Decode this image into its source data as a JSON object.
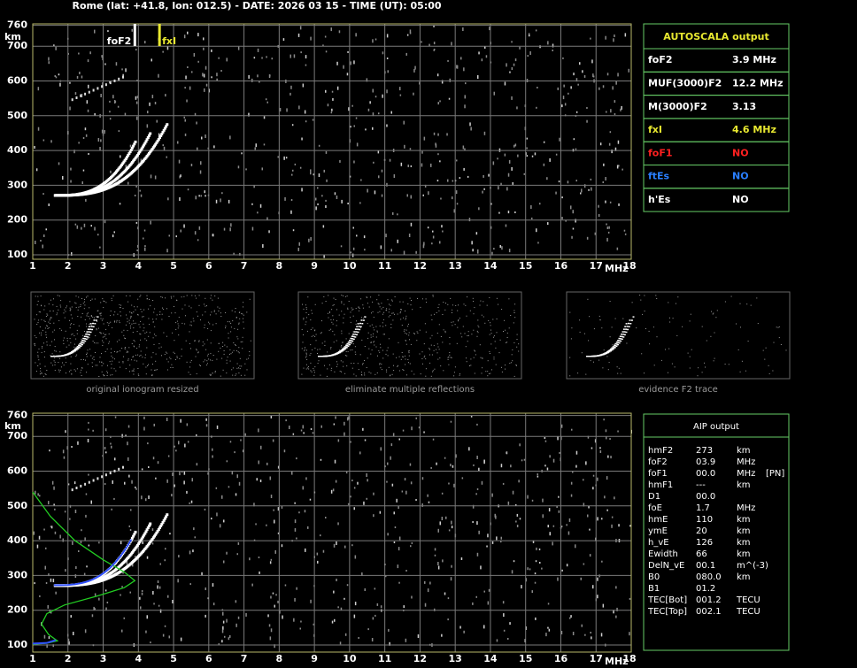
{
  "header": {
    "title": "Rome (lat: +41.8, lon: 012.5) - DATE: 2026 03 15 - TIME (UT): 05:00"
  },
  "axes": {
    "y_unit": "km",
    "x_unit": "MHz",
    "xticks": [
      1,
      2,
      3,
      4,
      5,
      6,
      7,
      8,
      9,
      10,
      11,
      12,
      13,
      14,
      15,
      16,
      17,
      18
    ],
    "yticks": [
      100,
      200,
      300,
      400,
      500,
      600,
      700,
      760
    ]
  },
  "markers": [
    {
      "label": "foF2",
      "color": "#ffffff"
    },
    {
      "label": "fxI",
      "color": "#e8e830"
    }
  ],
  "autoscala": {
    "title": "AUTOSCALA output",
    "rows": [
      {
        "name": "foF2",
        "value": 3.9,
        "unit": "MHz",
        "color": "#ffffff"
      },
      {
        "name": "MUF(3000)F2",
        "value": 12.2,
        "unit": "MHz",
        "color": "#ffffff"
      },
      {
        "name": "M(3000)F2",
        "value": 3.13,
        "color": "#ffffff"
      },
      {
        "name": "fxI",
        "value": 4.6,
        "unit": "MHz",
        "color": "#e8e830"
      },
      {
        "name": "foF1",
        "value": "NO",
        "color": "#ff2020"
      },
      {
        "name": "ftEs",
        "value": "NO",
        "color": "#2a7fff"
      },
      {
        "name": "h'Es",
        "value": "NO",
        "color": "#ffffff"
      }
    ]
  },
  "thumbnails": [
    "original ionogram resized",
    "eliminate multiple reflections",
    "evidence F2 trace"
  ],
  "aip": {
    "title": "AIP output",
    "rows": [
      [
        "hmF2",
        "273",
        "km"
      ],
      [
        "foF2",
        "03.9",
        "MHz"
      ],
      [
        "foF1",
        "00.0",
        "MHz",
        "[PN]"
      ],
      [
        "hmF1",
        "---",
        "km"
      ],
      [
        "D1",
        "00.0"
      ],
      [
        "foE",
        "1.7",
        "MHz"
      ],
      [
        "hmE",
        "110",
        "km"
      ],
      [
        "ymE",
        "20",
        "km"
      ],
      [
        "h_vE",
        "126",
        "km"
      ],
      [
        "Ewidth",
        "66",
        "km"
      ],
      [
        "DelN_vE",
        "00.1",
        "m^(-3)"
      ],
      [
        "B0",
        "080.0",
        "km"
      ],
      [
        "B1",
        "01.2"
      ],
      [
        "TEC[Bot]",
        "001.2",
        "TECU"
      ],
      [
        "TEC[Top]",
        "002.1",
        "TECU"
      ]
    ]
  }
}
